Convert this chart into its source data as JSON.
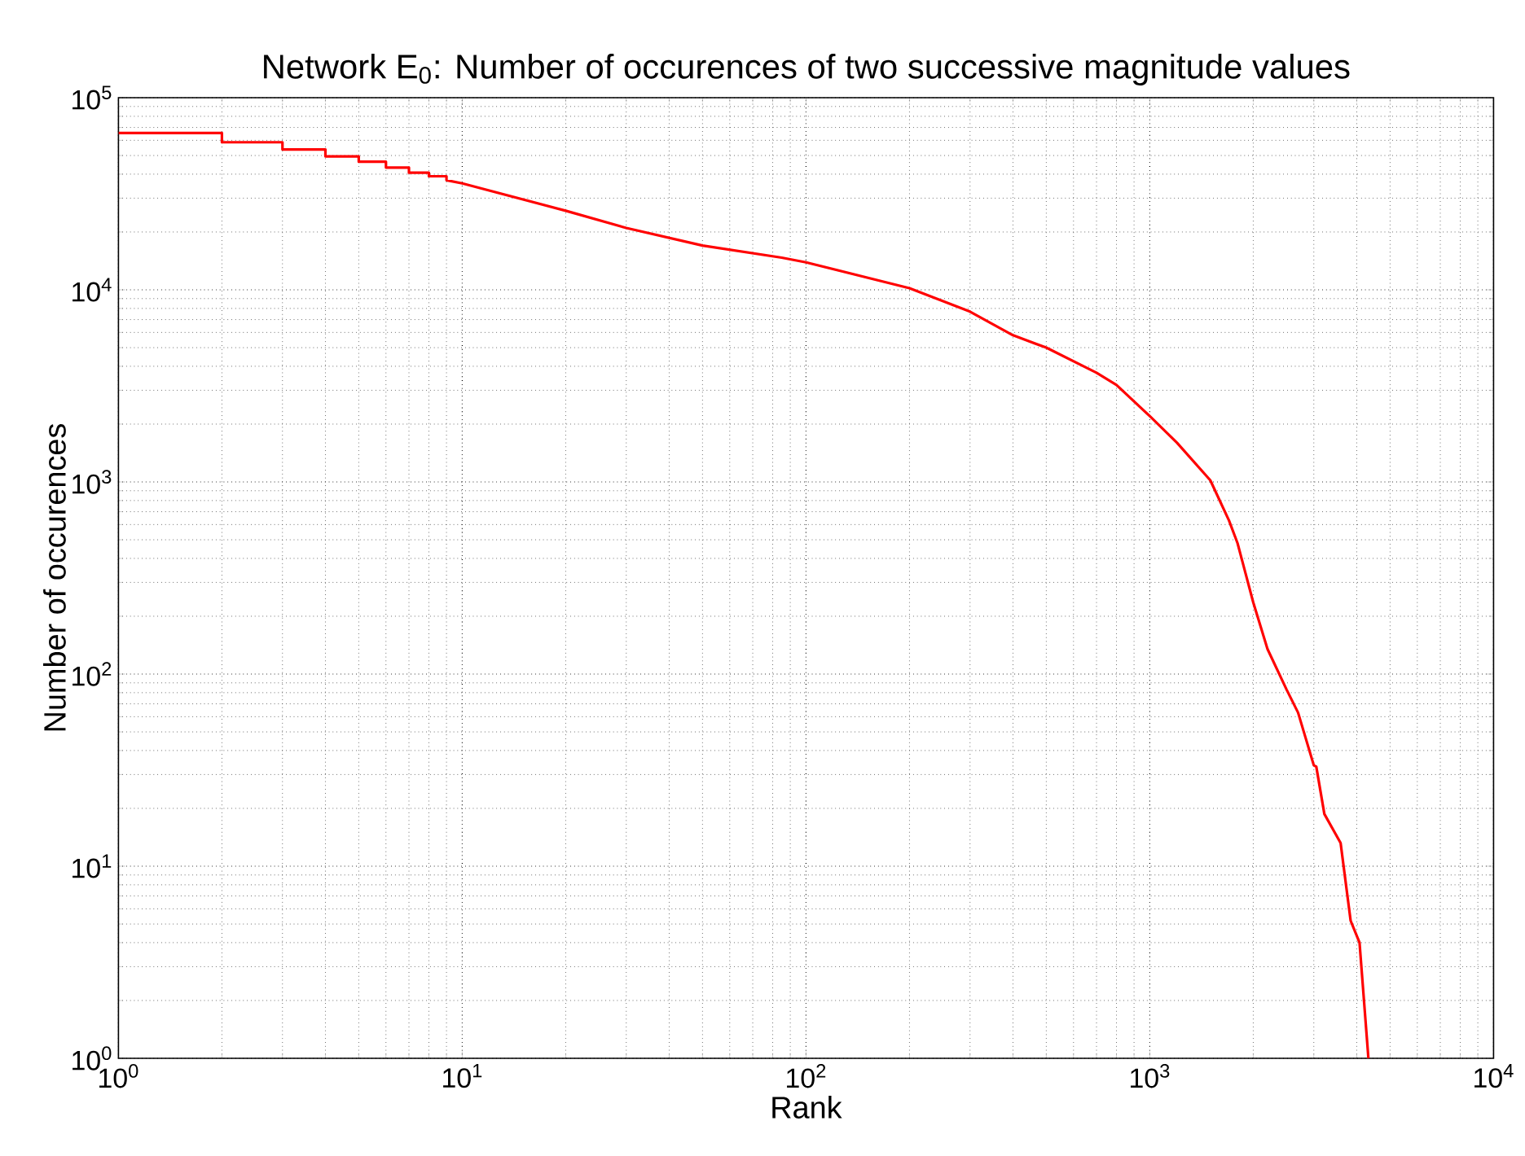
{
  "chart_data": {
    "type": "line",
    "title": "Network E$_{0}$: Number of occurences of two successive magnitude values",
    "xlabel": "Rank",
    "ylabel": "Number of occurences",
    "log": "xy",
    "grid": true,
    "xlim": [
      1,
      10000
    ],
    "ylim": [
      1,
      100000
    ],
    "xticks": [
      {
        "value": 1,
        "label": "10$^{0}$"
      },
      {
        "value": 10,
        "label": "10$^{1}$"
      },
      {
        "value": 100,
        "label": "10$^{2}$"
      },
      {
        "value": 1000,
        "label": "10$^{3}$"
      },
      {
        "value": 10000,
        "label": "10$^{4}$"
      }
    ],
    "yticks": [
      {
        "value": 1,
        "label": "10$^{0}$"
      },
      {
        "value": 10,
        "label": "10$^{1}$"
      },
      {
        "value": 100,
        "label": "10$^{2}$"
      },
      {
        "value": 1000,
        "label": "10$^{3}$"
      },
      {
        "value": 10000,
        "label": "10$^{4}$"
      },
      {
        "value": 100000,
        "label": "10$^{5}$"
      }
    ],
    "series": [
      {
        "color": "#ff0000",
        "x": [
          1,
          2,
          2,
          3,
          3,
          4,
          4,
          5,
          5,
          6,
          6,
          7,
          7,
          8,
          8,
          9,
          9,
          10,
          20,
          30,
          50,
          85,
          100,
          200,
          300,
          400,
          500,
          700,
          800,
          1000,
          1200,
          1500,
          1700,
          1800,
          2000,
          2200,
          2500,
          2700,
          3000,
          3050,
          3220,
          3590,
          3840,
          4075,
          4325
        ],
        "values": [
          65500,
          65500,
          58600,
          58600,
          53800,
          53800,
          49500,
          49500,
          46400,
          46400,
          43300,
          43300,
          40700,
          40700,
          39000,
          39000,
          37200,
          35800,
          25800,
          21000,
          17000,
          14700,
          13900,
          10200,
          7700,
          5800,
          5000,
          3700,
          3200,
          2200,
          1600,
          1020,
          630,
          480,
          236,
          135,
          83,
          63,
          33.5,
          33,
          18.7,
          13.2,
          5.2,
          4.0,
          1.0
        ]
      }
    ]
  }
}
